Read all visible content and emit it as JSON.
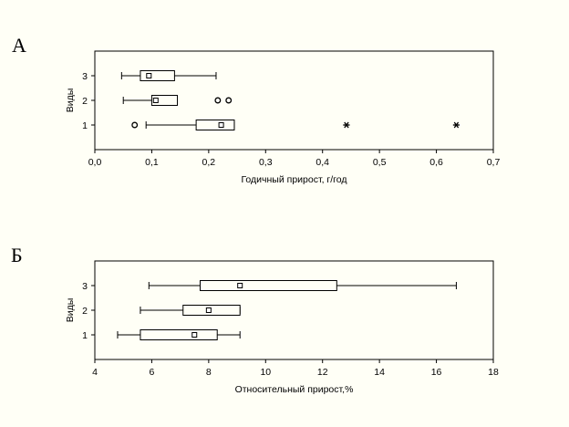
{
  "chart_data": [
    {
      "type": "boxplot",
      "orientation": "horizontal",
      "panel_label": "А",
      "xlabel": "Годичный прирост, г/год",
      "ylabel": "Виды",
      "xlim": [
        0.0,
        0.7
      ],
      "x_ticks": [
        "0,0",
        "0,1",
        "0,2",
        "0,3",
        "0,4",
        "0,5",
        "0,6",
        "0,7"
      ],
      "categories": [
        "1",
        "2",
        "3"
      ],
      "boxes": [
        {
          "category": "1",
          "whisker_low": 0.09,
          "q1": 0.178,
          "median": 0.222,
          "q3": 0.245,
          "whisker_high": 0.245,
          "outliers": [
            0.07
          ],
          "extremes": [
            0.442,
            0.635
          ]
        },
        {
          "category": "2",
          "whisker_low": 0.05,
          "q1": 0.1,
          "median": 0.107,
          "q3": 0.145,
          "whisker_high": 0.145,
          "outliers": [
            0.216,
            0.235
          ],
          "extremes": []
        },
        {
          "category": "3",
          "whisker_low": 0.047,
          "q1": 0.08,
          "median": 0.095,
          "q3": 0.14,
          "whisker_high": 0.213,
          "outliers": [],
          "extremes": []
        }
      ]
    },
    {
      "type": "boxplot",
      "orientation": "horizontal",
      "panel_label": "Б",
      "xlabel": "Относительный прирост,%",
      "ylabel": "Виды",
      "xlim": [
        4,
        18
      ],
      "x_ticks": [
        "4",
        "6",
        "8",
        "10",
        "12",
        "14",
        "16",
        "18"
      ],
      "categories": [
        "1",
        "2",
        "3"
      ],
      "boxes": [
        {
          "category": "1",
          "whisker_low": 4.8,
          "q1": 5.6,
          "median": 7.5,
          "q3": 8.3,
          "whisker_high": 9.1,
          "outliers": [],
          "extremes": []
        },
        {
          "category": "2",
          "whisker_low": 5.6,
          "q1": 7.1,
          "median": 8.0,
          "q3": 9.1,
          "whisker_high": 9.1,
          "outliers": [],
          "extremes": []
        },
        {
          "category": "3",
          "whisker_low": 5.9,
          "q1": 7.7,
          "median": 9.1,
          "q3": 12.5,
          "whisker_high": 16.7,
          "outliers": [],
          "extremes": []
        }
      ]
    }
  ]
}
